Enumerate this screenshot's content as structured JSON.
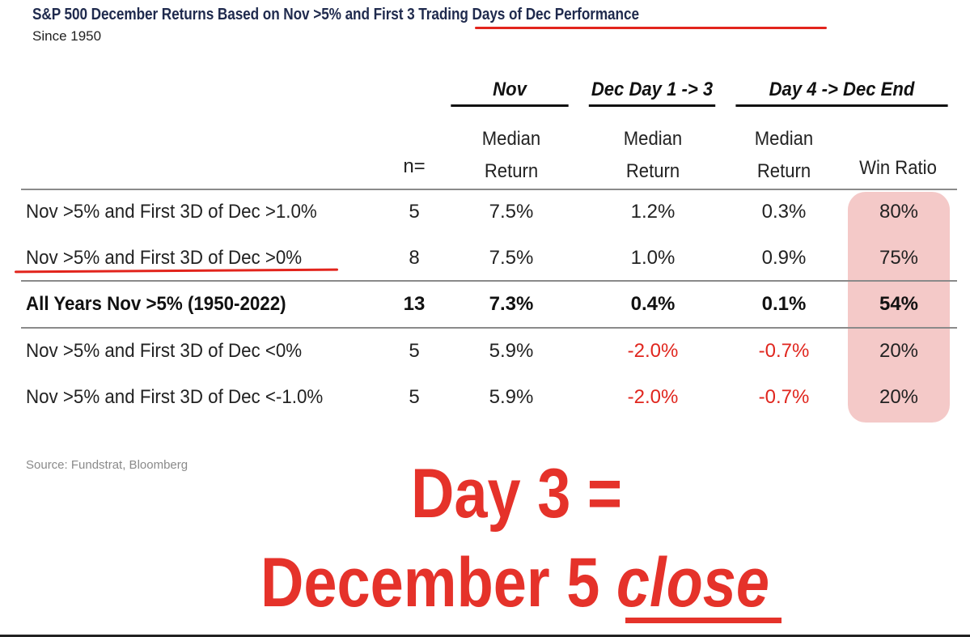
{
  "title": "S&P 500 December Returns Based on Nov >5% and First 3 Trading Days of Dec Performance",
  "subtitle": "Since 1950",
  "group_headers": {
    "nov": "Nov",
    "dec_day_1_3": "Dec Day 1 -> 3",
    "day4_dec_end": "Day 4 -> Dec End"
  },
  "column_headers": {
    "n": "n=",
    "nov_median": "Median\nReturn",
    "dec13_median": "Median\nReturn",
    "day4_median": "Median\nReturn",
    "win_ratio": "Win Ratio"
  },
  "rows": [
    {
      "label": "Nov >5% and First 3D of Dec >1.0%",
      "n": "5",
      "nov": "7.5%",
      "dec13": "1.2%",
      "day4": "0.3%",
      "win": "80%"
    },
    {
      "label": "Nov >5% and First 3D of Dec >0%",
      "n": "8",
      "nov": "7.5%",
      "dec13": "1.0%",
      "day4": "0.9%",
      "win": "75%"
    },
    {
      "label": "All Years Nov >5% (1950-2022)",
      "n": "13",
      "nov": "7.3%",
      "dec13": "0.4%",
      "day4": "0.1%",
      "win": "54%"
    },
    {
      "label": "Nov >5% and First 3D of Dec <0%",
      "n": "5",
      "nov": "5.9%",
      "dec13": "-2.0%",
      "day4": "-0.7%",
      "win": "20%"
    },
    {
      "label": "Nov >5% and First 3D of Dec <-1.0%",
      "n": "5",
      "nov": "5.9%",
      "dec13": "-2.0%",
      "day4": "-0.7%",
      "win": "20%"
    }
  ],
  "source": "Source: Fundstrat, Bloomberg",
  "annotation": {
    "line1": "Day 3 =",
    "line2_prefix": "December 5 ",
    "line2_emphasis": "close"
  },
  "colors": {
    "title": "#1f2a4d",
    "negative": "#e0261e",
    "annotation": "#e5322a",
    "win_ratio_highlight": "#f4c9c8"
  },
  "chart_data": {
    "type": "table",
    "title": "S&P 500 December Returns Based on Nov >5% and First 3 Trading Days of Dec Performance",
    "subtitle": "Since 1950",
    "columns": [
      "n=",
      "Nov Median Return",
      "Dec Day 1 -> 3 Median Return",
      "Day 4 -> Dec End Median Return",
      "Day 4 -> Dec End Win Ratio"
    ],
    "categories": [
      "Nov >5% and First 3D of Dec >1.0%",
      "Nov >5% and First 3D of Dec >0%",
      "All Years Nov >5% (1950-2022)",
      "Nov >5% and First 3D of Dec <0%",
      "Nov >5% and First 3D of Dec <-1.0%"
    ],
    "series": [
      {
        "name": "n=",
        "values": [
          5,
          8,
          13,
          5,
          5
        ]
      },
      {
        "name": "Nov Median Return",
        "values": [
          7.5,
          7.5,
          7.3,
          5.9,
          5.9
        ]
      },
      {
        "name": "Dec Day 1 -> 3 Median Return",
        "values": [
          1.2,
          1.0,
          0.4,
          -2.0,
          -2.0
        ]
      },
      {
        "name": "Day 4 -> Dec End Median Return",
        "values": [
          0.3,
          0.9,
          0.1,
          -0.7,
          -0.7
        ]
      },
      {
        "name": "Win Ratio",
        "values": [
          80,
          75,
          54,
          20,
          20
        ]
      }
    ]
  }
}
